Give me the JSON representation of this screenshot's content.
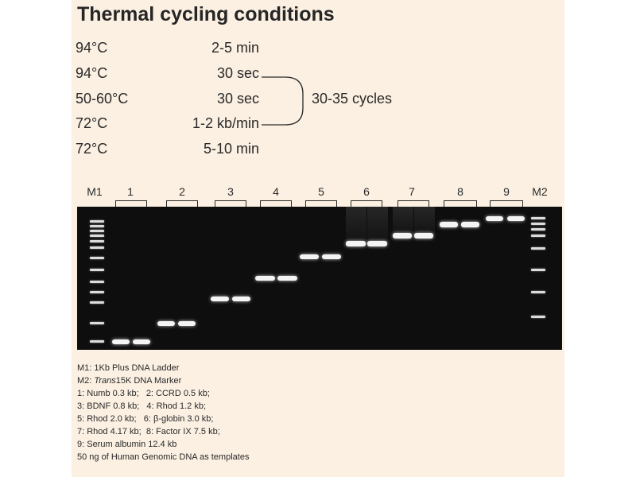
{
  "title": "Thermal cycling conditions",
  "conditions": [
    {
      "temp": "94°C",
      "time": "2-5 min"
    },
    {
      "temp": "94°C",
      "time": "30 sec"
    },
    {
      "temp": "50-60°C",
      "time": "30 sec"
    },
    {
      "temp": "72°C",
      "time": "1-2 kb/min"
    },
    {
      "temp": "72°C",
      "time": "5-10 min"
    }
  ],
  "cycles_label": "30-35 cycles",
  "lanes": [
    "M1",
    "1",
    "2",
    "3",
    "4",
    "5",
    "6",
    "7",
    "8",
    "9",
    "M2"
  ],
  "legend": {
    "m1": "M1: 1Kb Plus DNA Ladder",
    "m2_prefix": "M2: ",
    "m2_italic": "Trans",
    "m2_suffix": "15K DNA Marker",
    "lines": [
      "1: Numb 0.3 kb;   2: CCRD 0.5 kb;",
      "3: BDNF 0.8 kb;   4: Rhod 1.2 kb;",
      "5: Rhod 2.0 kb;   6: β-globin 3.0 kb;",
      "7: Rhod 4.17 kb;  8: Factor IX 7.5 kb;",
      "9: Serum albumin 12.4 kb",
      "50 ng of Human Genomic DNA as templates"
    ]
  },
  "gel": {
    "background": "#0e0e0e",
    "band_color": "#f4f4f4",
    "product_sizes_kb": [
      0.3,
      0.5,
      0.8,
      1.2,
      2.0,
      3.0,
      4.17,
      7.5,
      12.4
    ]
  }
}
